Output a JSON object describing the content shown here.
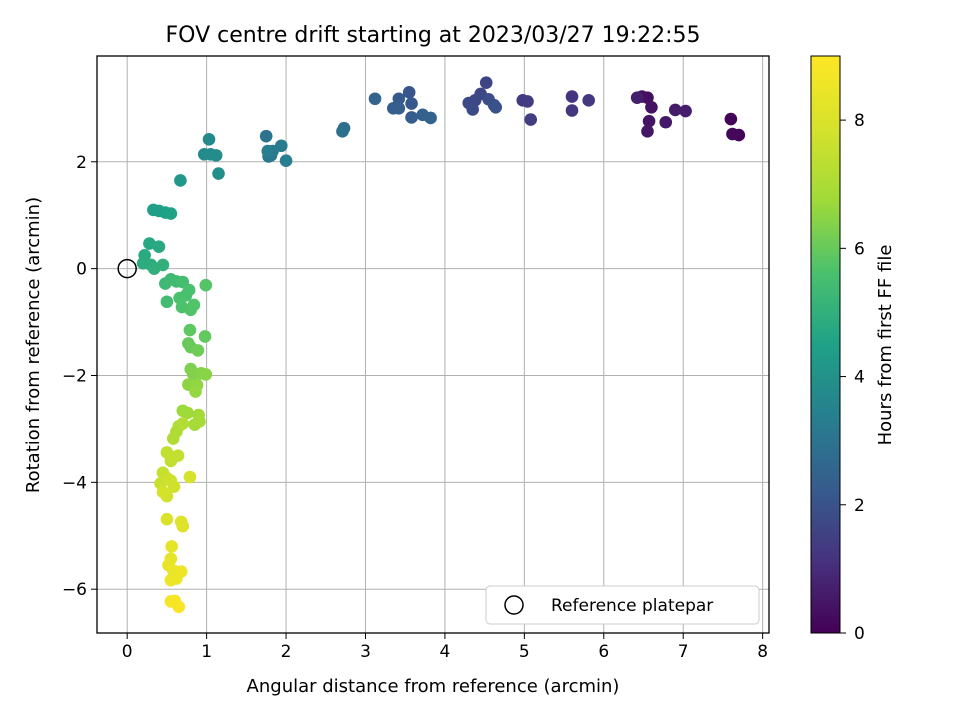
{
  "chart_data": {
    "type": "scatter",
    "title": "FOV centre drift starting at 2023/03/27 19:22:55",
    "xlabel": "Angular distance from reference (arcmin)",
    "ylabel": "Rotation from reference (arcmin)",
    "xlim": [
      -0.38,
      8.08
    ],
    "ylim": [
      -6.82,
      3.98
    ],
    "xticks": [
      0,
      1,
      2,
      3,
      4,
      5,
      6,
      7,
      8
    ],
    "yticks": [
      -6,
      -4,
      -2,
      0,
      2
    ],
    "grid": true,
    "colormap": "viridis",
    "colorbar": {
      "label": "Hours from first FF file",
      "range": [
        0,
        9
      ],
      "ticks": [
        0,
        2,
        4,
        6,
        8
      ]
    },
    "legend": {
      "position": "lower-right",
      "entries": [
        {
          "label": "Reference platepar",
          "marker": "open-circle"
        }
      ]
    },
    "reference_point": {
      "x": 0,
      "y": 0
    },
    "series": [
      {
        "points": [
          [
            7.6,
            2.8,
            0.05
          ],
          [
            7.7,
            2.5,
            0.1
          ],
          [
            7.62,
            2.52,
            0.15
          ],
          [
            6.55,
            3.2,
            0.3
          ],
          [
            6.48,
            3.22,
            0.35
          ],
          [
            6.6,
            3.02,
            0.4
          ],
          [
            6.57,
            2.76,
            0.45
          ],
          [
            6.55,
            2.57,
            0.5
          ],
          [
            6.78,
            2.74,
            0.55
          ],
          [
            6.9,
            2.97,
            0.6
          ],
          [
            7.03,
            2.95,
            0.65
          ],
          [
            6.42,
            3.2,
            0.7
          ],
          [
            5.6,
            3.22,
            1.2
          ],
          [
            5.6,
            2.96,
            1.25
          ],
          [
            5.81,
            3.15,
            1.3
          ],
          [
            4.98,
            3.15,
            1.35
          ],
          [
            5.04,
            3.13,
            1.4
          ],
          [
            5.08,
            2.79,
            1.45
          ],
          [
            4.52,
            3.48,
            1.6
          ],
          [
            4.45,
            3.27,
            1.65
          ],
          [
            4.38,
            3.15,
            1.7
          ],
          [
            4.3,
            3.1,
            1.75
          ],
          [
            4.35,
            2.98,
            1.8
          ],
          [
            4.55,
            3.17,
            1.85
          ],
          [
            4.62,
            3.06,
            1.9
          ],
          [
            4.64,
            3.02,
            1.95
          ],
          [
            3.55,
            3.3,
            2.1
          ],
          [
            3.58,
            3.09,
            2.15
          ],
          [
            3.42,
            3.18,
            2.2
          ],
          [
            3.58,
            2.83,
            2.25
          ],
          [
            3.35,
            3.0,
            2.3
          ],
          [
            3.42,
            3.0,
            2.35
          ],
          [
            3.72,
            2.88,
            2.4
          ],
          [
            3.82,
            2.82,
            2.45
          ],
          [
            3.12,
            3.18,
            2.5
          ],
          [
            2.73,
            2.63,
            2.8
          ],
          [
            2.71,
            2.57,
            2.9
          ],
          [
            1.75,
            2.48,
            3.0
          ],
          [
            1.78,
            2.1,
            3.1
          ],
          [
            1.81,
            2.12,
            3.15
          ],
          [
            1.83,
            2.2,
            3.2
          ],
          [
            1.94,
            2.3,
            3.25
          ],
          [
            2.0,
            2.02,
            3.3
          ],
          [
            1.77,
            2.2,
            3.35
          ],
          [
            1.03,
            2.42,
            3.7
          ],
          [
            0.97,
            2.14,
            3.75
          ],
          [
            1.05,
            2.14,
            3.8
          ],
          [
            1.12,
            2.12,
            3.85
          ],
          [
            1.15,
            1.78,
            3.9
          ],
          [
            0.67,
            1.65,
            4.2
          ],
          [
            0.33,
            1.1,
            4.4
          ],
          [
            0.4,
            1.08,
            4.45
          ],
          [
            0.48,
            1.05,
            4.5
          ],
          [
            0.55,
            1.03,
            4.55
          ],
          [
            0.28,
            0.47,
            4.7
          ],
          [
            0.4,
            0.41,
            4.75
          ],
          [
            0.22,
            0.25,
            4.8
          ],
          [
            0.2,
            0.1,
            4.85
          ],
          [
            0.3,
            0.07,
            4.9
          ],
          [
            0.34,
            0.0,
            4.95
          ],
          [
            0.45,
            0.07,
            5.0
          ],
          [
            0.48,
            -0.28,
            5.3
          ],
          [
            0.55,
            -0.2,
            5.35
          ],
          [
            0.62,
            -0.24,
            5.4
          ],
          [
            0.5,
            -0.62,
            5.45
          ],
          [
            0.7,
            -0.25,
            5.5
          ],
          [
            0.74,
            -0.5,
            5.55
          ],
          [
            0.78,
            -0.4,
            5.6
          ],
          [
            0.66,
            -0.55,
            5.62
          ],
          [
            0.69,
            -0.72,
            5.65
          ],
          [
            0.8,
            -0.77,
            5.7
          ],
          [
            0.84,
            -0.68,
            5.72
          ],
          [
            0.99,
            -0.31,
            5.75
          ],
          [
            0.79,
            -1.15,
            5.9
          ],
          [
            0.98,
            -1.27,
            5.95
          ],
          [
            0.77,
            -1.4,
            6.0
          ],
          [
            0.8,
            -1.47,
            6.05
          ],
          [
            0.89,
            -1.53,
            6.1
          ],
          [
            0.8,
            -1.88,
            6.3
          ],
          [
            0.83,
            -1.97,
            6.35
          ],
          [
            0.93,
            -1.96,
            6.4
          ],
          [
            0.99,
            -1.98,
            6.45
          ],
          [
            0.77,
            -2.17,
            6.5
          ],
          [
            0.88,
            -2.18,
            6.55
          ],
          [
            0.86,
            -2.3,
            6.6
          ],
          [
            0.7,
            -2.66,
            6.7
          ],
          [
            0.76,
            -2.7,
            6.75
          ],
          [
            0.9,
            -2.74,
            6.8
          ],
          [
            0.85,
            -2.92,
            6.85
          ],
          [
            0.91,
            -2.86,
            6.9
          ],
          [
            0.65,
            -2.95,
            7.0
          ],
          [
            0.62,
            -3.05,
            7.05
          ],
          [
            0.58,
            -3.18,
            7.1
          ],
          [
            0.7,
            -2.9,
            7.15
          ],
          [
            0.5,
            -3.44,
            7.4
          ],
          [
            0.55,
            -3.6,
            7.45
          ],
          [
            0.64,
            -3.5,
            7.5
          ],
          [
            0.45,
            -3.82,
            7.55
          ],
          [
            0.42,
            -4.02,
            7.6
          ],
          [
            0.5,
            -3.92,
            7.65
          ],
          [
            0.55,
            -3.97,
            7.7
          ],
          [
            0.59,
            -4.08,
            7.75
          ],
          [
            0.5,
            -4.26,
            7.8
          ],
          [
            0.45,
            -4.18,
            7.85
          ],
          [
            0.79,
            -3.9,
            7.9
          ],
          [
            0.5,
            -4.69,
            8.0
          ],
          [
            0.68,
            -4.74,
            8.05
          ],
          [
            0.7,
            -4.82,
            8.1
          ],
          [
            0.56,
            -5.2,
            8.3
          ],
          [
            0.55,
            -5.43,
            8.35
          ],
          [
            0.52,
            -5.55,
            8.4
          ],
          [
            0.58,
            -5.65,
            8.45
          ],
          [
            0.55,
            -5.83,
            8.5
          ],
          [
            0.62,
            -5.8,
            8.55
          ],
          [
            0.68,
            -5.67,
            8.6
          ],
          [
            0.55,
            -6.23,
            8.75
          ],
          [
            0.6,
            -6.22,
            8.8
          ],
          [
            0.65,
            -6.33,
            8.85
          ]
        ]
      }
    ]
  }
}
